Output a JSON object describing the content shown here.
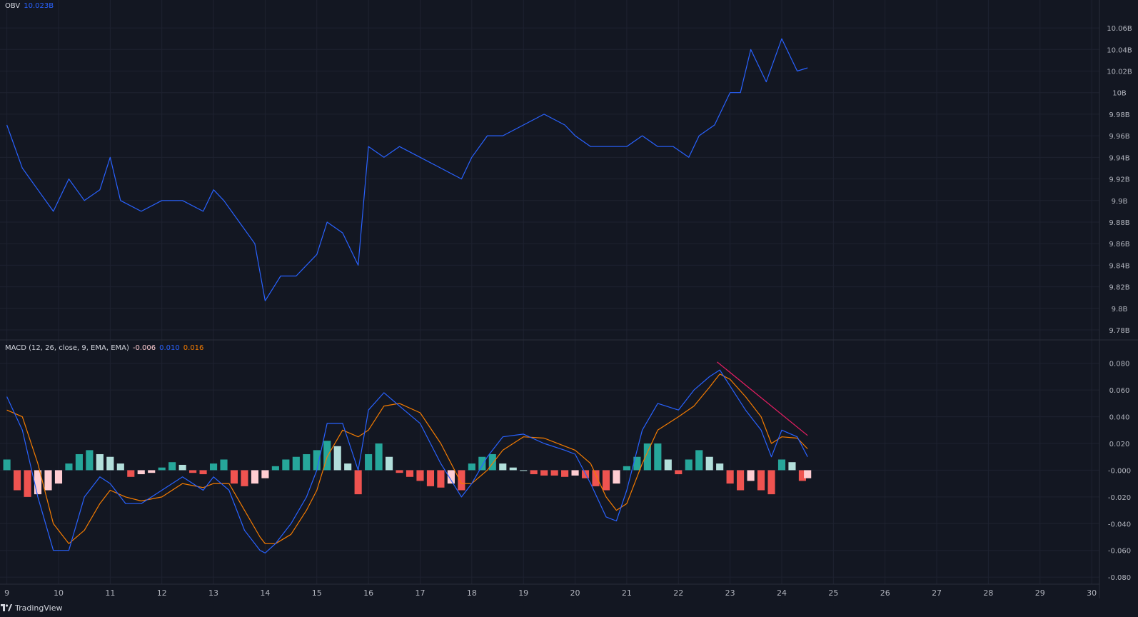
{
  "colors": {
    "background": "#131722",
    "grid": "#1e2230",
    "separator": "#2a2e39",
    "axis_text": "#b2b5be",
    "obv_line": "#2962ff",
    "macd_line": "#2962ff",
    "signal_line": "#f57c00",
    "hist_pos_strong": "#26a69a",
    "hist_pos_weak": "#b2dfdb",
    "hist_neg_strong": "#ef5350",
    "hist_neg_weak": "#ffcdd2",
    "trendline": "#e91e63"
  },
  "obv_legend": {
    "name": "OBV",
    "value": "10.023B"
  },
  "macd_legend": {
    "name": "MACD (12, 26, close, 9, EMA, EMA)",
    "histogram": "-0.006",
    "macd": "0.010",
    "signal": "0.016"
  },
  "branding": {
    "logo_text": "TradingView"
  },
  "chart_data": [
    {
      "type": "line",
      "title": "OBV",
      "series": [
        {
          "name": "OBV",
          "x": [
            9.0,
            9.3,
            9.6,
            9.9,
            10.2,
            10.5,
            10.8,
            11.0,
            11.2,
            11.6,
            12.0,
            12.4,
            12.8,
            13.0,
            13.2,
            13.5,
            13.8,
            14.0,
            14.3,
            14.6,
            15.0,
            15.2,
            15.5,
            15.8,
            16.0,
            16.3,
            16.6,
            17.0,
            17.4,
            17.8,
            18.0,
            18.3,
            18.6,
            19.0,
            19.4,
            19.8,
            20.0,
            20.3,
            20.6,
            21.0,
            21.3,
            21.6,
            21.9,
            22.2,
            22.4,
            22.7,
            23.0,
            23.2,
            23.4,
            23.7,
            24.0,
            24.3,
            24.5
          ],
          "values": [
            9.97,
            9.93,
            9.91,
            9.89,
            9.92,
            9.9,
            9.91,
            9.94,
            9.9,
            9.89,
            9.9,
            9.9,
            9.89,
            9.91,
            9.9,
            9.88,
            9.86,
            9.807,
            9.83,
            9.83,
            9.85,
            9.88,
            9.87,
            9.84,
            9.95,
            9.94,
            9.95,
            9.94,
            9.93,
            9.92,
            9.94,
            9.96,
            9.96,
            9.97,
            9.98,
            9.97,
            9.96,
            9.95,
            9.95,
            9.95,
            9.96,
            9.95,
            9.95,
            9.94,
            9.96,
            9.97,
            10.0,
            10.0,
            10.04,
            10.01,
            10.05,
            10.02,
            10.023
          ]
        }
      ],
      "x_ticks": [
        "9",
        "10",
        "11",
        "12",
        "13",
        "14",
        "15",
        "16",
        "17",
        "18",
        "19",
        "20",
        "21",
        "22",
        "23",
        "24",
        "25",
        "26",
        "27",
        "28",
        "29",
        "30"
      ],
      "y_ticks": [
        "10.06B",
        "10.04B",
        "10.02B",
        "10B",
        "9.98B",
        "9.96B",
        "9.94B",
        "9.92B",
        "9.9B",
        "9.88B",
        "9.86B",
        "9.84B",
        "9.82B",
        "9.8B",
        "9.78B"
      ],
      "ylim": [
        9.78,
        10.07
      ],
      "xlim": [
        8.95,
        30.15
      ],
      "grid": true
    },
    {
      "type": "line",
      "title": "MACD (12, 26, close, 9, EMA, EMA)",
      "series": [
        {
          "name": "MACD",
          "x": [
            9.0,
            9.3,
            9.6,
            9.9,
            10.2,
            10.5,
            10.8,
            11.0,
            11.3,
            11.6,
            12.0,
            12.4,
            12.8,
            13.0,
            13.3,
            13.6,
            13.9,
            14.0,
            14.2,
            14.5,
            14.8,
            15.0,
            15.2,
            15.5,
            15.8,
            16.0,
            16.3,
            16.6,
            17.0,
            17.4,
            17.8,
            18.0,
            18.3,
            18.6,
            19.0,
            19.4,
            19.8,
            20.0,
            20.3,
            20.6,
            20.8,
            21.0,
            21.3,
            21.6,
            22.0,
            22.3,
            22.6,
            22.8,
            23.0,
            23.3,
            23.6,
            23.8,
            24.0,
            24.3,
            24.5
          ],
          "values": [
            0.055,
            0.03,
            -0.02,
            -0.06,
            -0.06,
            -0.02,
            -0.005,
            -0.01,
            -0.025,
            -0.025,
            -0.015,
            -0.005,
            -0.015,
            -0.005,
            -0.015,
            -0.045,
            -0.06,
            -0.062,
            -0.055,
            -0.04,
            -0.02,
            0.0,
            0.035,
            0.035,
            0.0,
            0.045,
            0.058,
            0.048,
            0.035,
            0.005,
            -0.02,
            -0.01,
            0.01,
            0.025,
            0.027,
            0.02,
            0.015,
            0.012,
            -0.01,
            -0.035,
            -0.038,
            -0.015,
            0.03,
            0.05,
            0.045,
            0.06,
            0.07,
            0.075,
            0.063,
            0.045,
            0.03,
            0.01,
            0.03,
            0.025,
            0.01
          ]
        },
        {
          "name": "Signal",
          "x": [
            9.0,
            9.3,
            9.6,
            9.9,
            10.2,
            10.5,
            10.8,
            11.0,
            11.3,
            11.6,
            12.0,
            12.4,
            12.8,
            13.0,
            13.3,
            13.6,
            13.9,
            14.0,
            14.2,
            14.5,
            14.8,
            15.0,
            15.2,
            15.5,
            15.8,
            16.0,
            16.3,
            16.6,
            17.0,
            17.4,
            17.8,
            18.0,
            18.3,
            18.6,
            19.0,
            19.4,
            19.8,
            20.0,
            20.3,
            20.6,
            20.8,
            21.0,
            21.3,
            21.6,
            22.0,
            22.3,
            22.6,
            22.8,
            23.0,
            23.3,
            23.6,
            23.8,
            24.0,
            24.3,
            24.5
          ],
          "values": [
            0.045,
            0.04,
            0.005,
            -0.04,
            -0.055,
            -0.045,
            -0.025,
            -0.015,
            -0.02,
            -0.023,
            -0.02,
            -0.01,
            -0.013,
            -0.01,
            -0.01,
            -0.03,
            -0.05,
            -0.055,
            -0.055,
            -0.048,
            -0.03,
            -0.015,
            0.01,
            0.03,
            0.025,
            0.03,
            0.048,
            0.05,
            0.043,
            0.02,
            -0.01,
            -0.01,
            0.0,
            0.015,
            0.025,
            0.024,
            0.018,
            0.015,
            0.005,
            -0.02,
            -0.03,
            -0.025,
            0.005,
            0.03,
            0.04,
            0.048,
            0.062,
            0.072,
            0.068,
            0.055,
            0.04,
            0.02,
            0.025,
            0.024,
            0.016
          ]
        }
      ],
      "histogram": {
        "x": [
          9.0,
          9.2,
          9.4,
          9.6,
          9.8,
          10.0,
          10.2,
          10.4,
          10.6,
          10.8,
          11.0,
          11.2,
          11.4,
          11.6,
          11.8,
          12.0,
          12.2,
          12.4,
          12.6,
          12.8,
          13.0,
          13.2,
          13.4,
          13.6,
          13.8,
          14.0,
          14.2,
          14.4,
          14.6,
          14.8,
          15.0,
          15.2,
          15.4,
          15.6,
          15.8,
          16.0,
          16.2,
          16.4,
          16.6,
          16.8,
          17.0,
          17.2,
          17.4,
          17.6,
          17.8,
          18.0,
          18.2,
          18.4,
          18.6,
          18.8,
          19.0,
          19.2,
          19.4,
          19.6,
          19.8,
          20.0,
          20.2,
          20.4,
          20.6,
          20.8,
          21.0,
          21.2,
          21.4,
          21.6,
          21.8,
          22.0,
          22.2,
          22.4,
          22.6,
          22.8,
          23.0,
          23.2,
          23.4,
          23.6,
          23.8,
          24.0,
          24.2,
          24.4,
          24.5
        ],
        "values": [
          0.008,
          -0.015,
          -0.02,
          -0.018,
          -0.015,
          -0.01,
          0.005,
          0.012,
          0.015,
          0.012,
          0.01,
          0.005,
          -0.005,
          -0.003,
          -0.002,
          0.002,
          0.006,
          0.004,
          -0.002,
          -0.003,
          0.005,
          0.008,
          -0.01,
          -0.012,
          -0.01,
          -0.006,
          0.003,
          0.008,
          0.01,
          0.012,
          0.015,
          0.022,
          0.018,
          0.005,
          -0.018,
          0.012,
          0.02,
          0.01,
          -0.002,
          -0.005,
          -0.008,
          -0.012,
          -0.013,
          -0.01,
          -0.015,
          0.005,
          0.01,
          0.012,
          0.005,
          0.002,
          0.0,
          -0.003,
          -0.004,
          -0.004,
          -0.005,
          -0.004,
          -0.006,
          -0.012,
          -0.015,
          -0.01,
          0.003,
          0.01,
          0.02,
          0.02,
          0.008,
          -0.003,
          0.008,
          0.015,
          0.01,
          0.005,
          -0.01,
          -0.015,
          -0.008,
          -0.015,
          -0.018,
          0.008,
          0.006,
          -0.008,
          -0.006
        ]
      },
      "x_ticks": [
        "9",
        "10",
        "11",
        "12",
        "13",
        "14",
        "15",
        "16",
        "17",
        "18",
        "19",
        "20",
        "21",
        "22",
        "23",
        "24",
        "25",
        "26",
        "27",
        "28",
        "29",
        "30"
      ],
      "y_ticks": [
        "0.080",
        "0.060",
        "0.040",
        "0.020",
        "-0.000",
        "-0.020",
        "-0.040",
        "-0.060",
        "-0.080"
      ],
      "ylim": [
        -0.081,
        0.082
      ],
      "xlim": [
        8.95,
        30.15
      ],
      "grid": true,
      "annotations": [
        {
          "type": "trendline",
          "x": [
            22.75,
            24.5
          ],
          "values": [
            0.081,
            0.026
          ]
        }
      ]
    }
  ]
}
